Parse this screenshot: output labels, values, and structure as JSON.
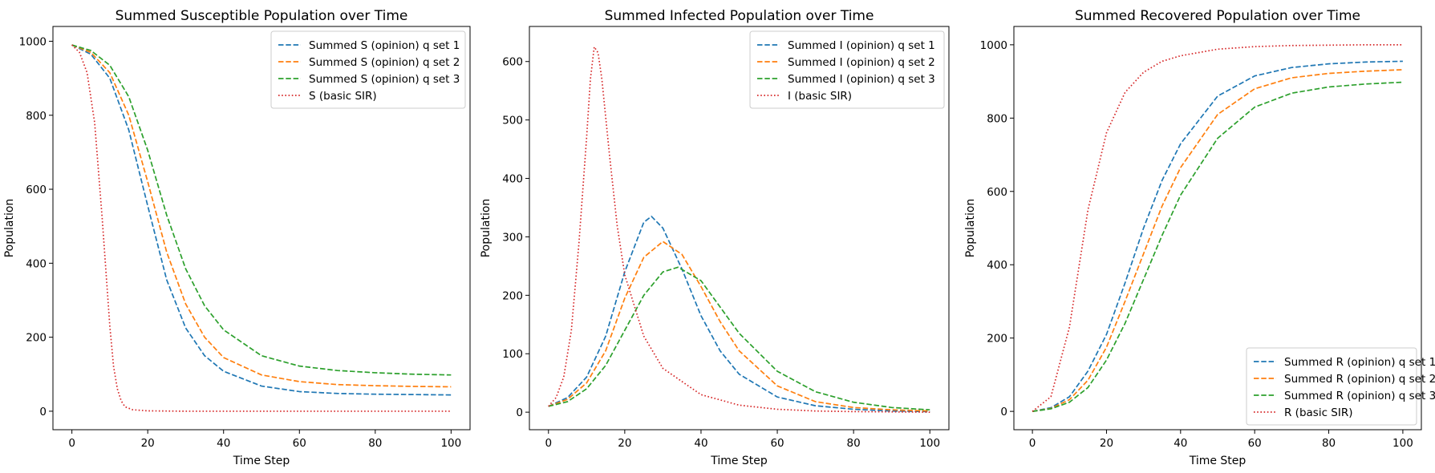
{
  "chart_data": [
    {
      "type": "line",
      "title": "Summed Susceptible Population over Time",
      "xlabel": "Time Step",
      "ylabel": "Population",
      "xlim": [
        -5,
        105
      ],
      "ylim": [
        -50,
        1040
      ],
      "xticks": [
        0,
        20,
        40,
        60,
        80,
        100
      ],
      "yticks": [
        0,
        200,
        400,
        600,
        800,
        1000
      ],
      "grid": false,
      "legend_position": "top-right",
      "series": [
        {
          "name": "Summed S (opinion) q set 1",
          "color": "#1f77b4",
          "style": "dashed",
          "x": [
            0,
            5,
            10,
            15,
            20,
            25,
            30,
            35,
            40,
            50,
            60,
            70,
            80,
            90,
            100
          ],
          "y": [
            990,
            965,
            900,
            760,
            555,
            355,
            225,
            150,
            108,
            68,
            53,
            48,
            46,
            45,
            44
          ]
        },
        {
          "name": "Summed S (opinion) q set 2",
          "color": "#ff7f0e",
          "style": "dashed",
          "x": [
            0,
            5,
            10,
            15,
            20,
            25,
            30,
            35,
            40,
            50,
            60,
            70,
            80,
            90,
            100
          ],
          "y": [
            990,
            970,
            915,
            800,
            620,
            430,
            290,
            200,
            145,
            98,
            80,
            72,
            69,
            67,
            66
          ]
        },
        {
          "name": "Summed S (opinion) q set 3",
          "color": "#2ca02c",
          "style": "dashed",
          "x": [
            0,
            5,
            10,
            15,
            20,
            25,
            30,
            35,
            40,
            50,
            60,
            70,
            80,
            90,
            100
          ],
          "y": [
            990,
            975,
            935,
            850,
            705,
            530,
            385,
            285,
            220,
            150,
            122,
            110,
            104,
            100,
            98
          ]
        },
        {
          "name": "S (basic SIR)",
          "color": "#d62728",
          "style": "dotted",
          "x": [
            0,
            2,
            4,
            6,
            8,
            10,
            11,
            12,
            13,
            14,
            16,
            20,
            30,
            40,
            60,
            100
          ],
          "y": [
            990,
            970,
            915,
            780,
            520,
            230,
            120,
            60,
            28,
            12,
            4,
            1,
            0,
            0,
            0,
            0
          ]
        }
      ]
    },
    {
      "type": "line",
      "title": "Summed Infected Population over Time",
      "xlabel": "Time Step",
      "ylabel": "Population",
      "xlim": [
        -5,
        105
      ],
      "ylim": [
        -30,
        660
      ],
      "xticks": [
        0,
        20,
        40,
        60,
        80,
        100
      ],
      "yticks": [
        0,
        100,
        200,
        300,
        400,
        500,
        600
      ],
      "grid": false,
      "legend_position": "top-right",
      "series": [
        {
          "name": "Summed I (opinion) q set 1",
          "color": "#1f77b4",
          "style": "dashed",
          "x": [
            0,
            5,
            10,
            15,
            20,
            25,
            27,
            30,
            35,
            40,
            45,
            50,
            60,
            70,
            80,
            90,
            100
          ],
          "y": [
            10,
            25,
            60,
            130,
            240,
            325,
            335,
            315,
            245,
            165,
            105,
            65,
            26,
            11,
            5,
            2,
            1
          ]
        },
        {
          "name": "Summed I (opinion) q set 2",
          "color": "#ff7f0e",
          "style": "dashed",
          "x": [
            0,
            5,
            10,
            15,
            20,
            25,
            30,
            35,
            40,
            45,
            50,
            60,
            70,
            80,
            90,
            100
          ],
          "y": [
            10,
            22,
            50,
            105,
            195,
            265,
            292,
            270,
            215,
            155,
            105,
            45,
            18,
            8,
            4,
            2
          ]
        },
        {
          "name": "Summed I (opinion) q set 3",
          "color": "#2ca02c",
          "style": "dashed",
          "x": [
            0,
            5,
            10,
            15,
            20,
            25,
            30,
            34,
            40,
            45,
            50,
            60,
            70,
            80,
            90,
            100
          ],
          "y": [
            10,
            18,
            40,
            80,
            140,
            200,
            240,
            248,
            225,
            180,
            135,
            70,
            35,
            17,
            8,
            4
          ]
        },
        {
          "name": "I (basic SIR)",
          "color": "#d62728",
          "style": "dotted",
          "x": [
            0,
            2,
            4,
            6,
            8,
            10,
            11,
            12,
            13,
            14,
            16,
            18,
            20,
            25,
            30,
            40,
            50,
            60,
            70,
            80,
            100
          ],
          "y": [
            10,
            25,
            60,
            140,
            290,
            470,
            570,
            625,
            615,
            570,
            440,
            320,
            235,
            130,
            75,
            30,
            12,
            5,
            2,
            1,
            0
          ]
        }
      ]
    },
    {
      "type": "line",
      "title": "Summed Recovered Population over Time",
      "xlabel": "Time Step",
      "ylabel": "Population",
      "xlim": [
        -5,
        105
      ],
      "ylim": [
        -50,
        1050
      ],
      "xticks": [
        0,
        20,
        40,
        60,
        80,
        100
      ],
      "yticks": [
        0,
        200,
        400,
        600,
        800,
        1000
      ],
      "grid": false,
      "legend_position": "bottom-right",
      "series": [
        {
          "name": "Summed R (opinion) q set 1",
          "color": "#1f77b4",
          "style": "dashed",
          "x": [
            0,
            5,
            10,
            15,
            20,
            25,
            30,
            35,
            40,
            50,
            60,
            70,
            80,
            90,
            100
          ],
          "y": [
            0,
            10,
            40,
            110,
            210,
            350,
            500,
            630,
            730,
            860,
            915,
            938,
            948,
            953,
            955
          ]
        },
        {
          "name": "Summed R (opinion) q set 2",
          "color": "#ff7f0e",
          "style": "dashed",
          "x": [
            0,
            5,
            10,
            15,
            20,
            25,
            30,
            35,
            40,
            50,
            60,
            70,
            80,
            90,
            100
          ],
          "y": [
            0,
            8,
            32,
            85,
            175,
            300,
            430,
            560,
            665,
            810,
            880,
            910,
            922,
            928,
            932
          ]
        },
        {
          "name": "Summed R (opinion) q set 3",
          "color": "#2ca02c",
          "style": "dashed",
          "x": [
            0,
            5,
            10,
            15,
            20,
            25,
            30,
            35,
            40,
            50,
            60,
            70,
            80,
            90,
            100
          ],
          "y": [
            0,
            7,
            25,
            65,
            140,
            240,
            360,
            480,
            590,
            745,
            830,
            868,
            885,
            893,
            898
          ]
        },
        {
          "name": "R (basic SIR)",
          "color": "#d62728",
          "style": "dotted",
          "x": [
            0,
            5,
            10,
            15,
            20,
            25,
            30,
            35,
            40,
            50,
            60,
            70,
            80,
            90,
            100
          ],
          "y": [
            0,
            40,
            230,
            550,
            760,
            870,
            925,
            955,
            970,
            988,
            995,
            998,
            999,
            1000,
            1000
          ]
        }
      ]
    }
  ]
}
